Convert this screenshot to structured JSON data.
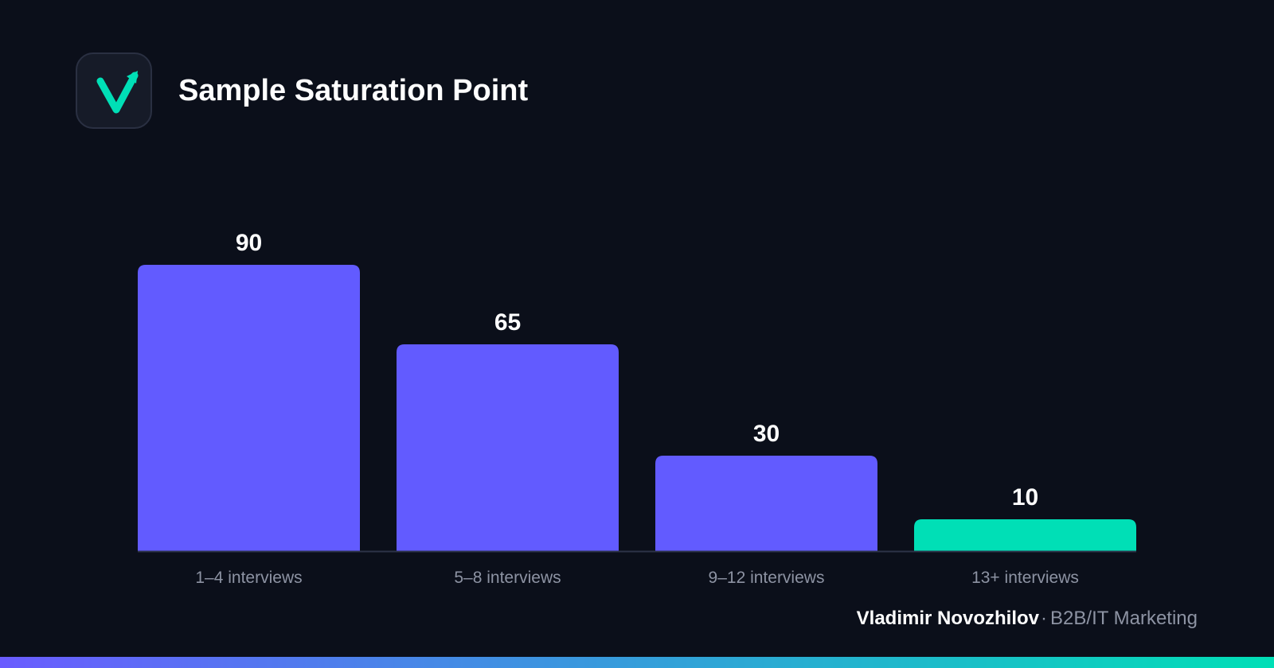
{
  "header": {
    "title": "Sample Saturation Point",
    "logo_icon": "check-arrow-icon"
  },
  "colors": {
    "background": "#0b0f1a",
    "bar": "#625bff",
    "highlight_bar": "#00dfb6",
    "axis": "#2d3348",
    "tick_text": "#8d93a3",
    "logo_accent": "#00dfb6",
    "gradient_start": "#6a5cff",
    "gradient_end": "#00dfb6"
  },
  "chart_data": {
    "type": "bar",
    "title": "Sample Saturation Point",
    "categories": [
      "1–4 interviews",
      "5–8 interviews",
      "9–12 interviews",
      "13+ interviews"
    ],
    "values": [
      90,
      65,
      30,
      10
    ],
    "value_labels": [
      "90",
      "65",
      "30",
      "10"
    ],
    "highlight_index": 3,
    "xlabel": "",
    "ylabel": "",
    "ylim": [
      0,
      90
    ],
    "grid": false,
    "legend": "none"
  },
  "footer": {
    "author": "Vladimir Novozhilov",
    "separator": "·",
    "role": "B2B/IT Marketing"
  }
}
